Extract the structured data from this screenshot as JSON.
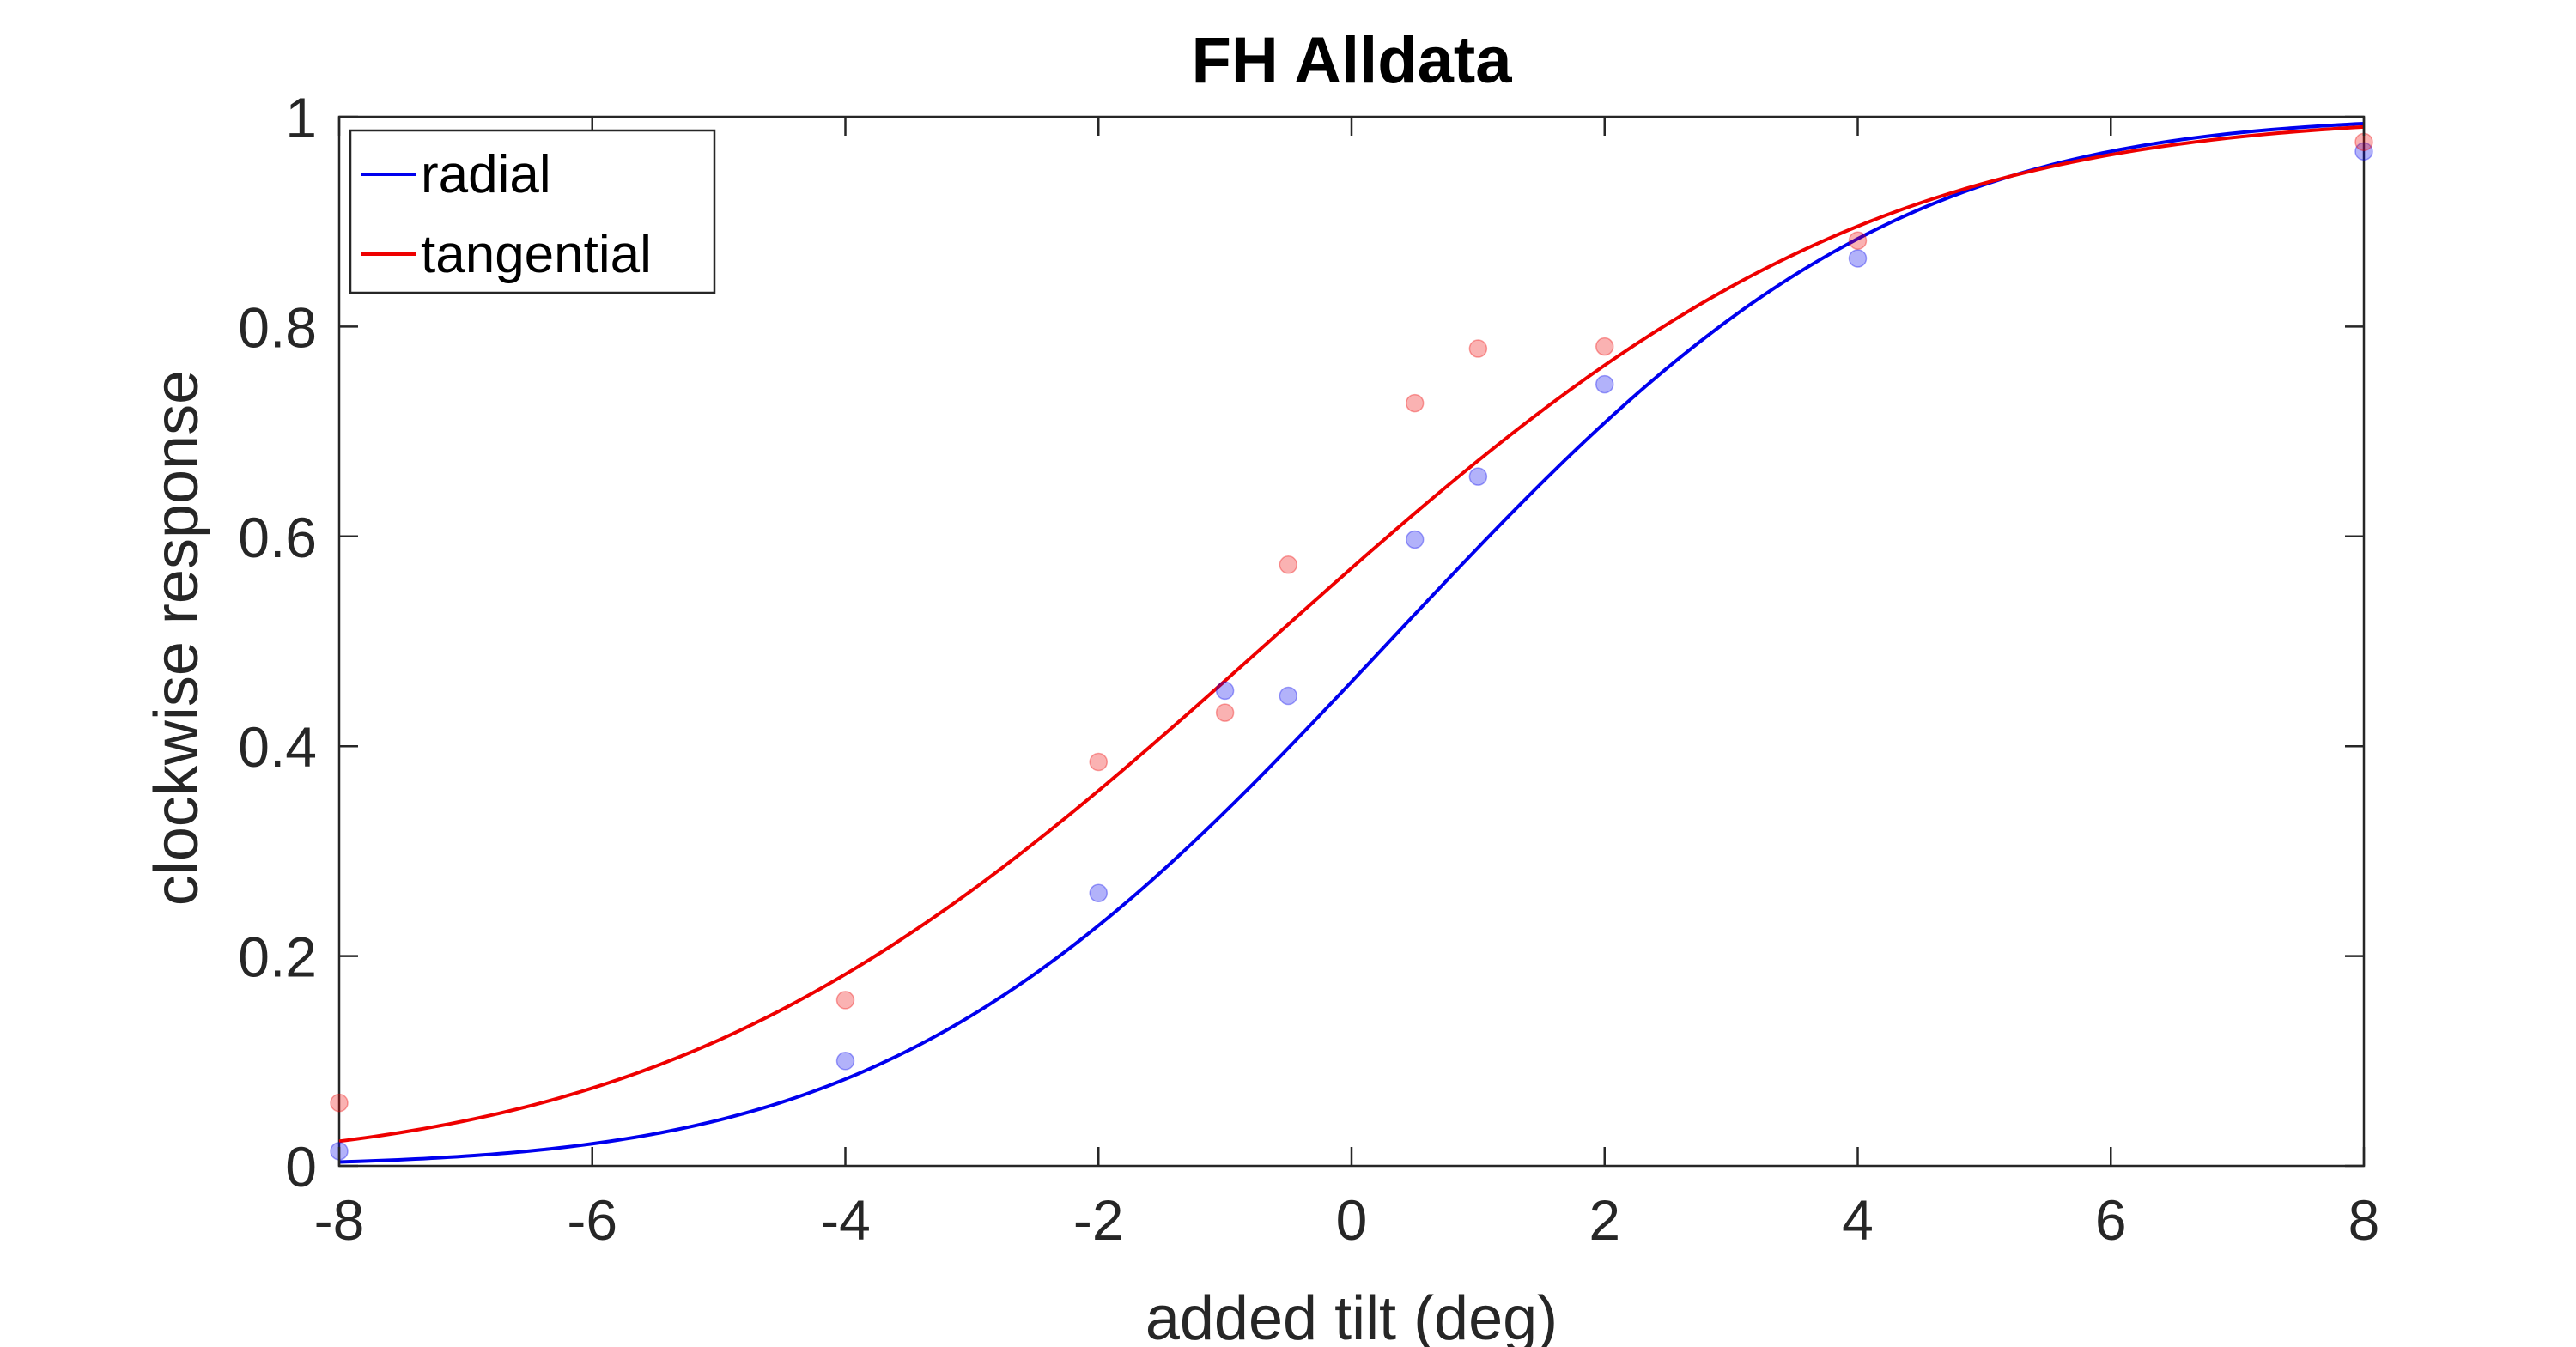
{
  "chart_data": {
    "type": "line",
    "title": "FH Alldata",
    "xlabel": "added tilt (deg)",
    "ylabel": "clockwise response",
    "xlim": [
      -8,
      8
    ],
    "ylim": [
      0,
      1
    ],
    "xticks": [
      -8,
      -6,
      -4,
      -2,
      0,
      2,
      4,
      6,
      8
    ],
    "xtick_labels": [
      "-8",
      "-6",
      "-4",
      "-2",
      "0",
      "2",
      "4",
      "6",
      "8"
    ],
    "yticks": [
      0,
      0.2,
      0.4,
      0.6,
      0.8,
      1
    ],
    "ytick_labels": [
      "0",
      "0.2",
      "0.4",
      "0.6",
      "0.8",
      "1"
    ],
    "grid": false,
    "legend_position": "top-left",
    "series": [
      {
        "name": "radial",
        "color": "#0000ee",
        "fit": {
          "mu": 0.3,
          "sigma": 3.1
        },
        "points": [
          {
            "x": -8,
            "y": 0.014
          },
          {
            "x": -4,
            "y": 0.1
          },
          {
            "x": -2,
            "y": 0.26
          },
          {
            "x": -1,
            "y": 0.453
          },
          {
            "x": -0.5,
            "y": 0.448
          },
          {
            "x": 0.5,
            "y": 0.597
          },
          {
            "x": 1,
            "y": 0.657
          },
          {
            "x": 2,
            "y": 0.745
          },
          {
            "x": 4,
            "y": 0.865
          },
          {
            "x": 8,
            "y": 0.967
          }
        ]
      },
      {
        "name": "tangential",
        "color": "#ee0000",
        "fit": {
          "mu": -0.65,
          "sigma": 3.7
        },
        "points": [
          {
            "x": -8,
            "y": 0.06
          },
          {
            "x": -4,
            "y": 0.158
          },
          {
            "x": -2,
            "y": 0.385
          },
          {
            "x": -1,
            "y": 0.432
          },
          {
            "x": -0.5,
            "y": 0.573
          },
          {
            "x": 0.5,
            "y": 0.727
          },
          {
            "x": 1,
            "y": 0.779
          },
          {
            "x": 2,
            "y": 0.781
          },
          {
            "x": 4,
            "y": 0.882
          },
          {
            "x": 8,
            "y": 0.976
          }
        ]
      }
    ]
  }
}
